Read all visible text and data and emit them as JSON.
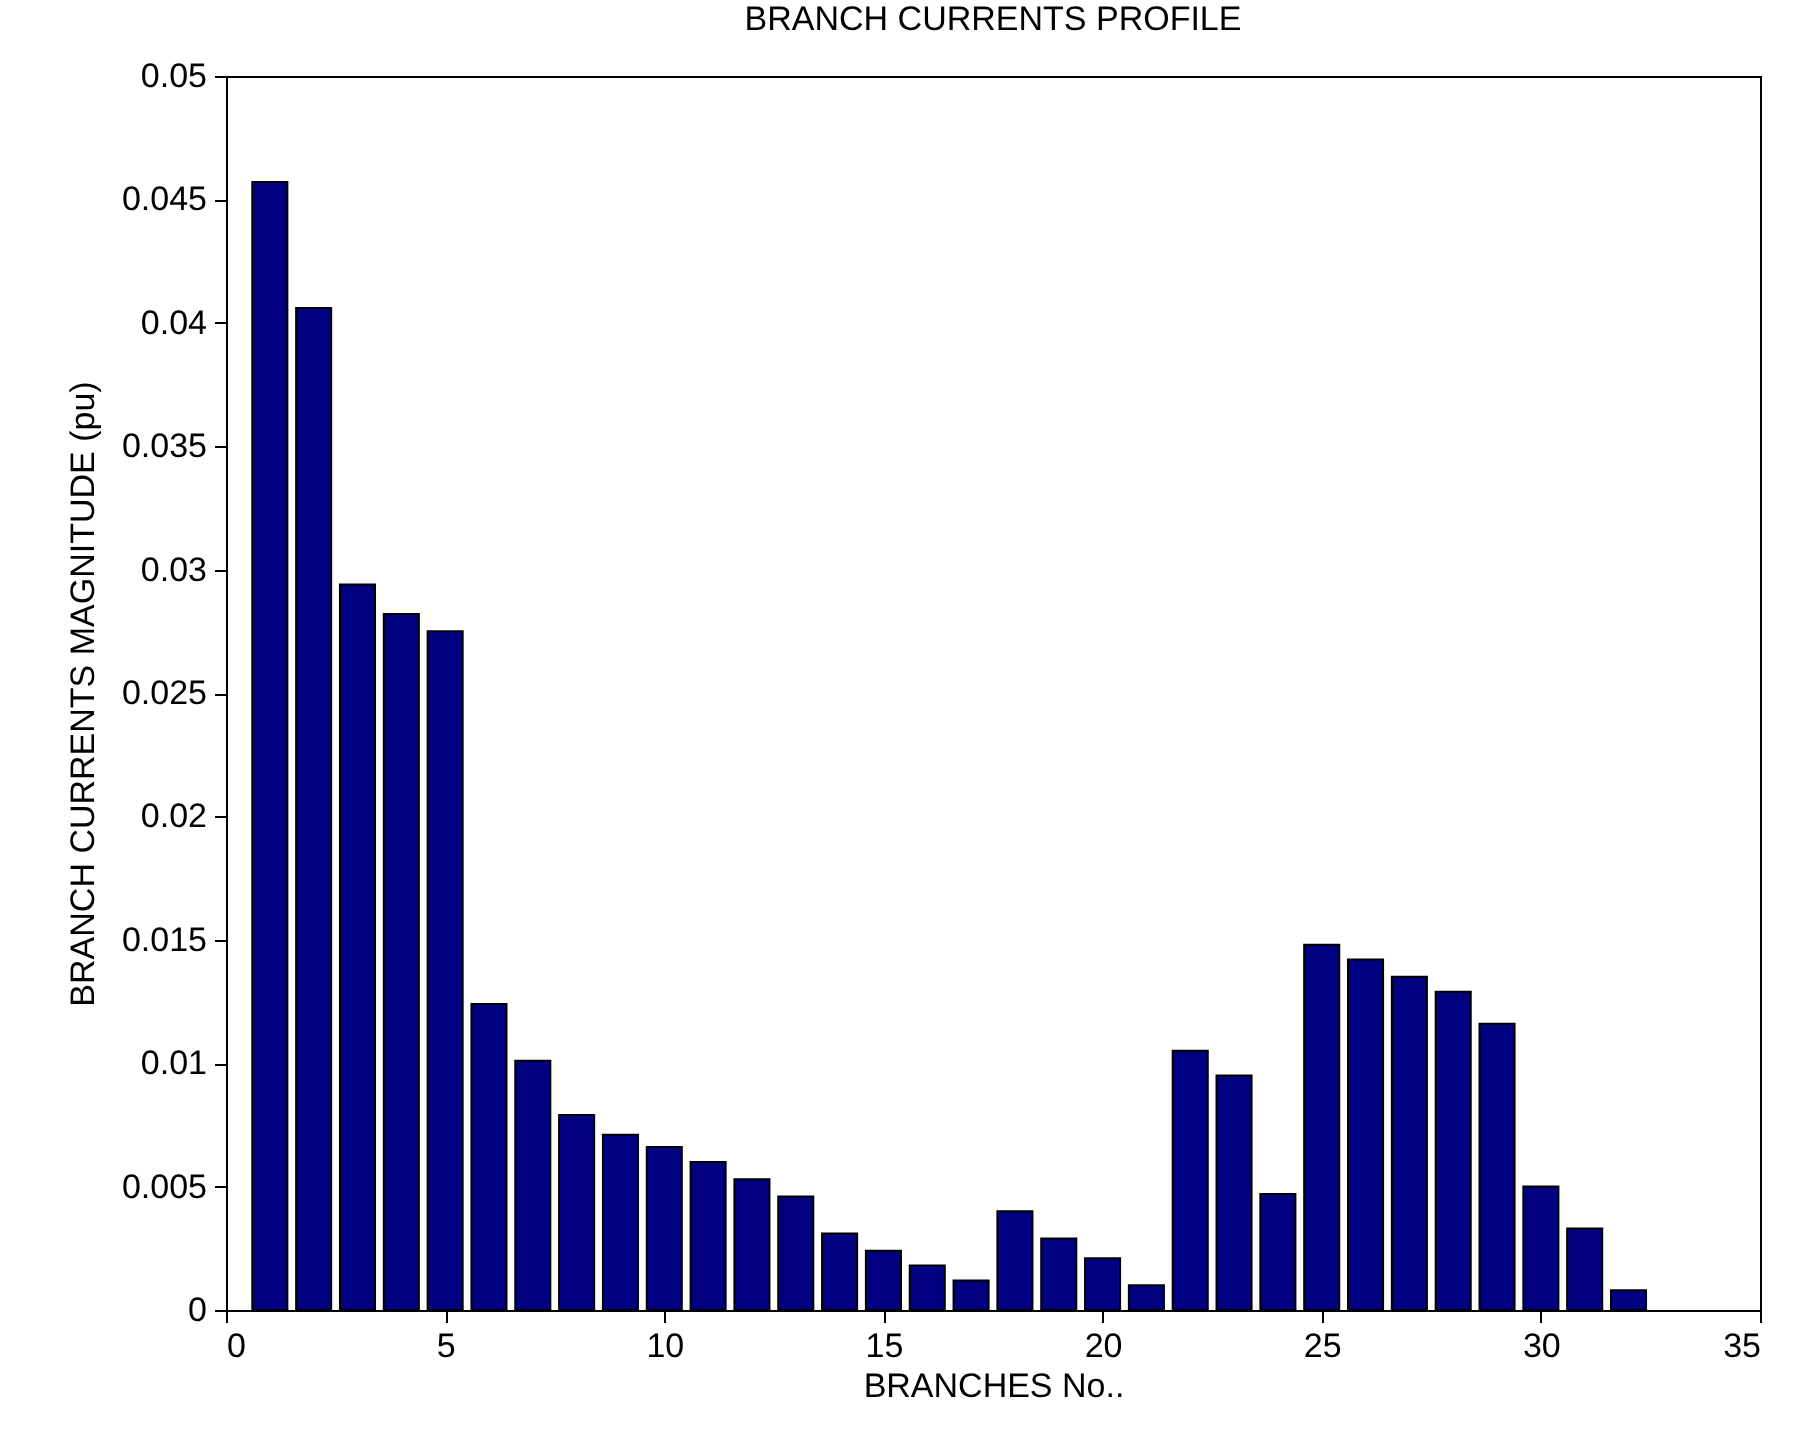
{
  "chart_data": {
    "type": "bar",
    "title": "BRANCH CURRENTS PROFILE",
    "xlabel": "BRANCHES No..",
    "ylabel": "BRANCH CURRENTS MAGNITUDE (pu)",
    "x": [
      1,
      2,
      3,
      4,
      5,
      6,
      7,
      8,
      9,
      10,
      11,
      12,
      13,
      14,
      15,
      16,
      17,
      18,
      19,
      20,
      21,
      22,
      23,
      24,
      25,
      26,
      27,
      28,
      29,
      30,
      31,
      32
    ],
    "series": [
      {
        "color": "#000080",
        "values": [
          0.0457,
          0.0406,
          0.0294,
          0.0282,
          0.0275,
          0.0124,
          0.0101,
          0.0079,
          0.0071,
          0.0066,
          0.006,
          0.0053,
          0.0046,
          0.0031,
          0.0024,
          0.0018,
          0.0012,
          0.004,
          0.0029,
          0.0021,
          0.001,
          0.0105,
          0.0095,
          0.0047,
          0.0148,
          0.0142,
          0.0135,
          0.0129,
          0.0116,
          0.005,
          0.0033,
          0.0008
        ]
      }
    ],
    "xlim": [
      0,
      35
    ],
    "xticks": [
      0,
      5,
      10,
      15,
      20,
      25,
      30,
      35
    ],
    "ylim": [
      0,
      0.05
    ],
    "yticks": [
      0,
      0.005,
      0.01,
      0.015,
      0.02,
      0.025,
      0.03,
      0.035,
      0.04,
      0.045,
      0.05
    ],
    "grid": false
  }
}
